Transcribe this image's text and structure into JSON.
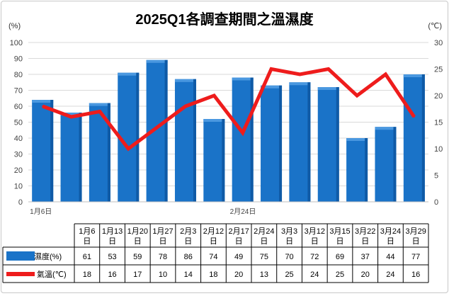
{
  "chart_data": {
    "type": "bar",
    "title": "2025Q1各調查期間之溫濕度",
    "y_left_unit": "(%)",
    "y_right_unit": "(℃)",
    "ylim_left": [
      0,
      100
    ],
    "ylim_right": [
      0,
      30
    ],
    "left_ticks": [
      "0",
      "10",
      "20",
      "30",
      "40",
      "50",
      "60",
      "70",
      "80",
      "90",
      "100"
    ],
    "right_ticks": [
      "0",
      "5",
      "10",
      "15",
      "20",
      "25",
      "30"
    ],
    "axis_date_labels": [
      "1月6日",
      "2月24日"
    ],
    "categories": [
      {
        "top": "1月6",
        "bottom": "日"
      },
      {
        "top": "1月13",
        "bottom": "日"
      },
      {
        "top": "1月20",
        "bottom": "日"
      },
      {
        "top": "1月27",
        "bottom": "日"
      },
      {
        "top": "2月3",
        "bottom": "日"
      },
      {
        "top": "2月12",
        "bottom": "日"
      },
      {
        "top": "2月17",
        "bottom": "日"
      },
      {
        "top": "2月24",
        "bottom": "日"
      },
      {
        "top": "3月3",
        "bottom": "日"
      },
      {
        "top": "3月12",
        "bottom": "日"
      },
      {
        "top": "3月15",
        "bottom": "日"
      },
      {
        "top": "3月22",
        "bottom": "日"
      },
      {
        "top": "3月24",
        "bottom": "日"
      },
      {
        "top": "3月29",
        "bottom": "日"
      }
    ],
    "series": [
      {
        "name": "濕度(%)",
        "type": "bar",
        "axis": "left",
        "color": "#1a73c8",
        "values": [
          61,
          53,
          59,
          78,
          86,
          74,
          49,
          75,
          70,
          72,
          69,
          37,
          44,
          77
        ],
        "bar_values": [
          64,
          56,
          62,
          81,
          89,
          77,
          52,
          78,
          73,
          75,
          72,
          40,
          47,
          80
        ]
      },
      {
        "name": "氣溫(℃)",
        "type": "line",
        "axis": "right",
        "color": "#ee1c1c",
        "values": [
          18,
          16,
          17,
          10,
          14,
          18,
          20,
          13,
          25,
          24,
          25,
          20,
          24,
          16
        ],
        "line_values": [
          18,
          16,
          17,
          10,
          14,
          18,
          20,
          13,
          25,
          24,
          25,
          20,
          24,
          16
        ]
      }
    ]
  }
}
